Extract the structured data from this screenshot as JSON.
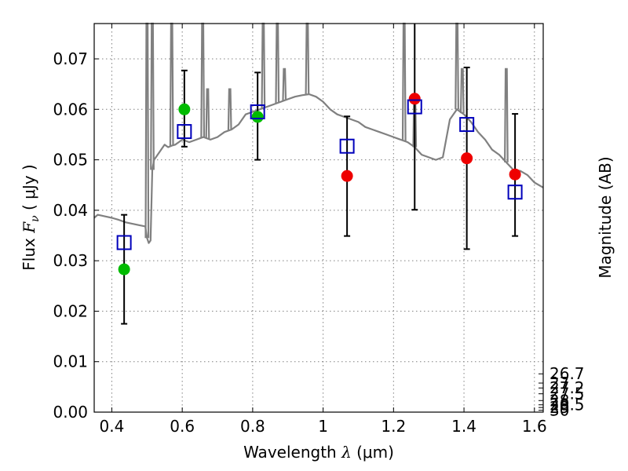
{
  "chart_data": {
    "type": "scatter",
    "xlabel": {
      "prefix": "Wavelength  ",
      "symbol": "λ",
      "unit": " (μm)"
    },
    "ylabel": {
      "prefix": "Flux  ",
      "symbol": "F",
      "subscript": "ν",
      "unit": "  ( μJy )"
    },
    "y2label": "Magnitude (AB)",
    "xlim": [
      0.35,
      1.625
    ],
    "ylim": [
      0.0,
      0.077
    ],
    "grid": true,
    "x_ticks": [
      0.4,
      0.6,
      0.8,
      1.0,
      1.2,
      1.4,
      1.6
    ],
    "x_tick_labels": [
      "0.4",
      "0.6",
      "0.8",
      "1",
      "1.2",
      "1.4",
      "1.6"
    ],
    "y_ticks": [
      0.0,
      0.01,
      0.02,
      0.03,
      0.04,
      0.05,
      0.06,
      0.07
    ],
    "y_tick_labels": [
      "0.00",
      "0.01",
      "0.02",
      "0.03",
      "0.04",
      "0.05",
      "0.06",
      "0.07"
    ],
    "y2_ticks": [
      26.7,
      27.0,
      27.2,
      27.5,
      28.0,
      28.5,
      29.0,
      30.0
    ],
    "y2_tick_labels": [
      "26.7",
      "27",
      "27.2",
      "27.5",
      "28",
      "28.5",
      "29",
      "30"
    ],
    "colors": {
      "spectrum": "#808080",
      "green_points": "#00bb00",
      "red_points": "#ee0000",
      "model_squares": "#0000bb",
      "errorbars": "#000000",
      "grid": "#808080"
    },
    "series": [
      {
        "kind": "observed-green",
        "points": [
          {
            "x": 0.435,
            "y": 0.0283
          },
          {
            "x": 0.606,
            "y": 0.06
          },
          {
            "x": 0.814,
            "y": 0.0585
          }
        ]
      },
      {
        "kind": "observed-red",
        "points": [
          {
            "x": 1.068,
            "y": 0.0468
          },
          {
            "x": 1.26,
            "y": 0.0621
          },
          {
            "x": 1.408,
            "y": 0.0503
          },
          {
            "x": 1.545,
            "y": 0.0471
          }
        ]
      },
      {
        "kind": "model-squares",
        "points": [
          {
            "x": 0.435,
            "y": 0.0336
          },
          {
            "x": 0.606,
            "y": 0.0556
          },
          {
            "x": 0.814,
            "y": 0.0595
          },
          {
            "x": 1.068,
            "y": 0.0527
          },
          {
            "x": 1.26,
            "y": 0.0605
          },
          {
            "x": 1.408,
            "y": 0.057
          },
          {
            "x": 1.545,
            "y": 0.0436
          }
        ]
      }
    ],
    "errorbars": [
      {
        "x": 0.435,
        "y_low": 0.0175,
        "y_high": 0.0391
      },
      {
        "x": 0.606,
        "y_low": 0.0526,
        "y_high": 0.0677
      },
      {
        "x": 0.814,
        "y_low": 0.05,
        "y_high": 0.0673
      },
      {
        "x": 1.068,
        "y_low": 0.0349,
        "y_high": 0.0586
      },
      {
        "x": 1.26,
        "y_low": 0.0401,
        "y_high": 0.077
      },
      {
        "x": 1.408,
        "y_low": 0.0323,
        "y_high": 0.0683
      },
      {
        "x": 1.545,
        "y_low": 0.0349,
        "y_high": 0.0591
      }
    ],
    "spectrum": {
      "x": [
        0.35,
        0.36,
        0.38,
        0.4,
        0.42,
        0.44,
        0.46,
        0.48,
        0.495,
        0.5,
        0.505,
        0.51,
        0.515,
        0.52,
        0.53,
        0.54,
        0.55,
        0.56,
        0.57,
        0.58,
        0.59,
        0.6,
        0.62,
        0.64,
        0.66,
        0.68,
        0.7,
        0.72,
        0.74,
        0.76,
        0.78,
        0.8,
        0.82,
        0.84,
        0.86,
        0.88,
        0.9,
        0.92,
        0.94,
        0.96,
        0.98,
        1.0,
        1.02,
        1.04,
        1.06,
        1.08,
        1.1,
        1.12,
        1.14,
        1.16,
        1.18,
        1.2,
        1.22,
        1.24,
        1.26,
        1.28,
        1.3,
        1.32,
        1.34,
        1.36,
        1.38,
        1.4,
        1.42,
        1.44,
        1.46,
        1.48,
        1.5,
        1.52,
        1.54,
        1.56,
        1.58,
        1.6,
        1.625
      ],
      "y": [
        0.0385,
        0.0391,
        0.0388,
        0.0385,
        0.0381,
        0.0376,
        0.0373,
        0.037,
        0.0368,
        0.0345,
        0.0335,
        0.034,
        0.048,
        0.05,
        0.051,
        0.052,
        0.053,
        0.0525,
        0.0528,
        0.053,
        0.0535,
        0.054,
        0.0535,
        0.054,
        0.0545,
        0.054,
        0.0545,
        0.0555,
        0.056,
        0.057,
        0.059,
        0.0595,
        0.06,
        0.0605,
        0.061,
        0.0615,
        0.062,
        0.0625,
        0.0628,
        0.063,
        0.0625,
        0.0615,
        0.06,
        0.059,
        0.0585,
        0.058,
        0.0575,
        0.0565,
        0.056,
        0.0555,
        0.055,
        0.0545,
        0.054,
        0.0535,
        0.0525,
        0.051,
        0.0505,
        0.05,
        0.0505,
        0.058,
        0.06,
        0.059,
        0.0575,
        0.0555,
        0.054,
        0.052,
        0.051,
        0.0495,
        0.048,
        0.0478,
        0.047,
        0.0455,
        0.0445
      ]
    },
    "emission_spikes": [
      {
        "x": 0.5,
        "y_top": 0.077
      },
      {
        "x": 0.515,
        "y_top": 0.077
      },
      {
        "x": 0.57,
        "y_top": 0.077
      },
      {
        "x": 0.658,
        "y_top": 0.077
      },
      {
        "x": 0.672,
        "y_top": 0.064
      },
      {
        "x": 0.735,
        "y_top": 0.064
      },
      {
        "x": 0.83,
        "y_top": 0.077
      },
      {
        "x": 0.87,
        "y_top": 0.077
      },
      {
        "x": 0.89,
        "y_top": 0.068
      },
      {
        "x": 0.955,
        "y_top": 0.077
      },
      {
        "x": 1.23,
        "y_top": 0.077
      },
      {
        "x": 1.26,
        "y_top": 0.063
      },
      {
        "x": 1.38,
        "y_top": 0.077
      },
      {
        "x": 1.395,
        "y_top": 0.068
      },
      {
        "x": 1.52,
        "y_top": 0.068
      }
    ]
  }
}
